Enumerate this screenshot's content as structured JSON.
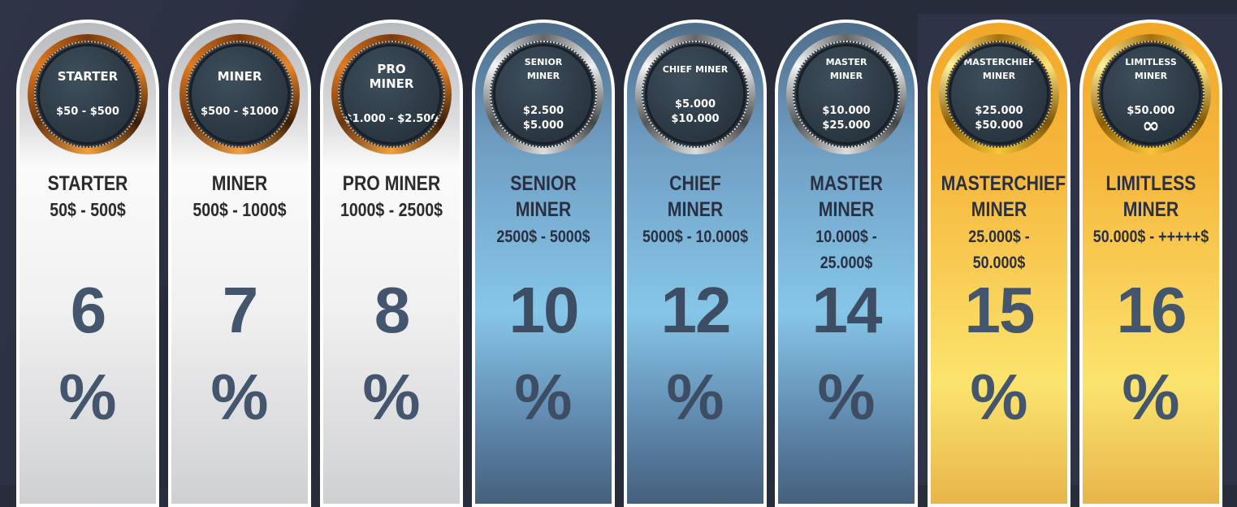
{
  "plans": [
    {
      "badge_title": "STARTER",
      "badge_range": "$50 - $500",
      "badge_range2": "",
      "title": "STARTER",
      "title2": "",
      "range": "50$ - 500$",
      "rate": "6",
      "unit": "%",
      "tier": "bronze"
    },
    {
      "badge_title": "MINER",
      "badge_range": "$500 - $1000",
      "badge_range2": "",
      "title": "MINER",
      "title2": "",
      "range": "500$ - 1000$",
      "rate": "7",
      "unit": "%",
      "tier": "bronze"
    },
    {
      "badge_title": "PRO MINER",
      "badge_range": "$1.000 - $2.500",
      "badge_range2": "",
      "title": "PRO MINER",
      "title2": "",
      "range": "1000$ - 2500$",
      "rate": "8",
      "unit": "%",
      "tier": "bronze"
    },
    {
      "badge_title": "SENIOR MINER",
      "badge_range": "$2.500",
      "badge_range2": "$5.000",
      "title": "SENIOR",
      "title2": "MINER",
      "range": "2500$ - 5000$",
      "rate": "10",
      "unit": "%",
      "tier": "silver"
    },
    {
      "badge_title": "CHIEF MINER",
      "badge_range": "$5.000",
      "badge_range2": "$10.000",
      "title": "CHIEF",
      "title2": "MINER",
      "range": "5000$ - 10.000$",
      "rate": "12",
      "unit": "%",
      "tier": "silver"
    },
    {
      "badge_title": "MASTER MINER",
      "badge_range": "$10.000",
      "badge_range2": "$25.000",
      "title": "MASTER",
      "title2": "MINER",
      "range": "10.000$ - 25.000$",
      "rate": "14",
      "unit": "%",
      "tier": "silver"
    },
    {
      "badge_title": "MASTERCHIEF MINER",
      "badge_range": "$25.000",
      "badge_range2": "$50.000",
      "title": "MASTERCHIEF",
      "title2": "MINER",
      "range": "25.000$ - 50.000$",
      "rate": "15",
      "unit": "%",
      "tier": "gold"
    },
    {
      "badge_title": "LIMITLESS MINER",
      "badge_range": "$50.000",
      "badge_range2": "∞",
      "title": "LIMITLESS",
      "title2": "MINER",
      "range": "50.000$ - +++++$",
      "rate": "16",
      "unit": "%",
      "tier": "gold"
    }
  ]
}
